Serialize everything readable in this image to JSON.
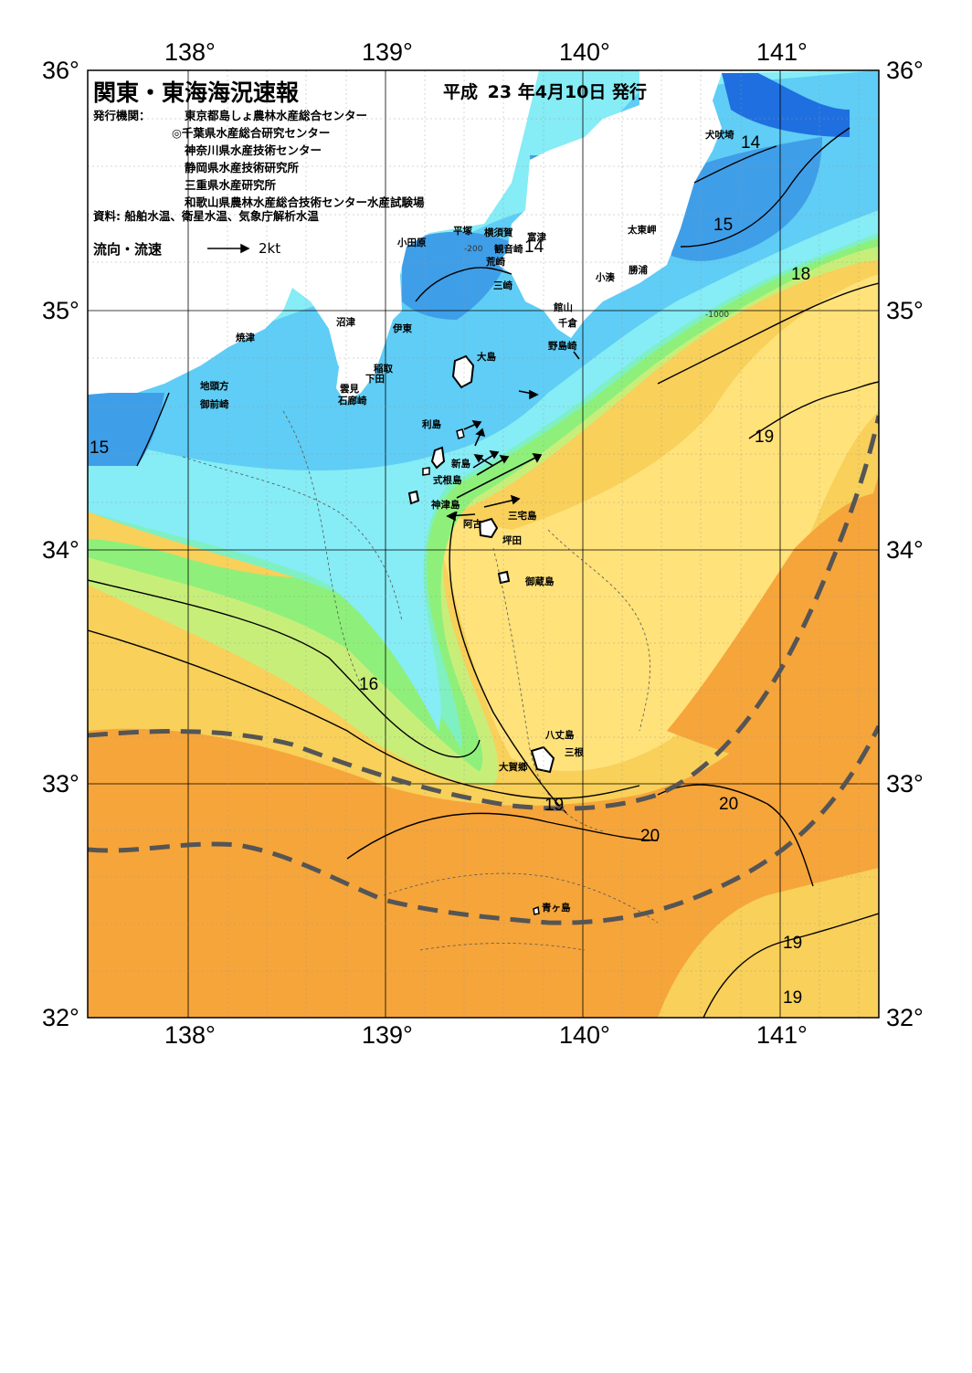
{
  "title": "関東・東海海況速報",
  "issue": {
    "era": "平成",
    "year": "23",
    "rest": "年4月10日 発行"
  },
  "issuer": {
    "label": "発行機関：",
    "orgs": [
      "東京都島しょ農林水産総合センター",
      "◎千葉県水産総合研究センター",
      "神奈川県水産技術センター",
      "静岡県水産技術研究所",
      "三重県水産研究所",
      "和歌山県農林水産総合技術センター水産試験場"
    ]
  },
  "sources": "資料: 船舶水温、衛星水温、気象庁解析水温",
  "flow_legend": {
    "label": "流向・流速",
    "unit": "2kt"
  },
  "longitudes": [
    "138°",
    "139°",
    "140°",
    "141°"
  ],
  "latitudes": [
    "36°",
    "35°",
    "34°",
    "33°",
    "32°"
  ],
  "places": {
    "inubozaki": "犬吠埼",
    "taitomisaki": "太東岬",
    "katsuura": "勝浦",
    "kominato": "小湊",
    "futtsu": "富津",
    "kannonzaki": "観音崎",
    "yokosuka": "横須賀",
    "hiratsuka": "平塚",
    "odawara": "小田原",
    "arasaki": "荒崎",
    "misaki": "三崎",
    "tateyama": "館山",
    "chikura": "千倉",
    "nojimazaki": "野島崎",
    "numazu": "沼津",
    "ito": "伊東",
    "yaizu": "焼津",
    "inatori": "稲取",
    "shimoda": "下田",
    "kumomi": "雲見",
    "irozaki": "石廊崎",
    "jitokata": "地頭方",
    "omaezaki": "御前崎",
    "oshima": "大島",
    "toshima": "利島",
    "niijima": "新島",
    "shikinejima": "式根島",
    "kozushima": "神津島",
    "miyakejima": "三宅島",
    "ako": "阿古",
    "tsubota": "坪田",
    "mikurajima": "御蔵島",
    "hachijojima": "八丈島",
    "mitsune": "三根",
    "okago": "大賀郷",
    "aogashima": "青ヶ島"
  },
  "isotherm_labels": [
    "14",
    "14",
    "15",
    "15",
    "16",
    "18",
    "19",
    "19",
    "19",
    "19",
    "20",
    "20"
  ],
  "depth_labels": [
    "-200",
    "-1000"
  ],
  "colors": {
    "t13": "#1f6fe0",
    "t14": "#3f9ee8",
    "t15": "#5fcdf5",
    "t16": "#86ecf5",
    "t17": "#7ff0c2",
    "t18": "#8ef07a",
    "t18b": "#c8ee7a",
    "t19": "#ffe27a",
    "t19b": "#f8d05a",
    "t20": "#f6a53a",
    "t21": "#f39a22",
    "land": "#ffffff",
    "kuroshio": "#555555"
  }
}
